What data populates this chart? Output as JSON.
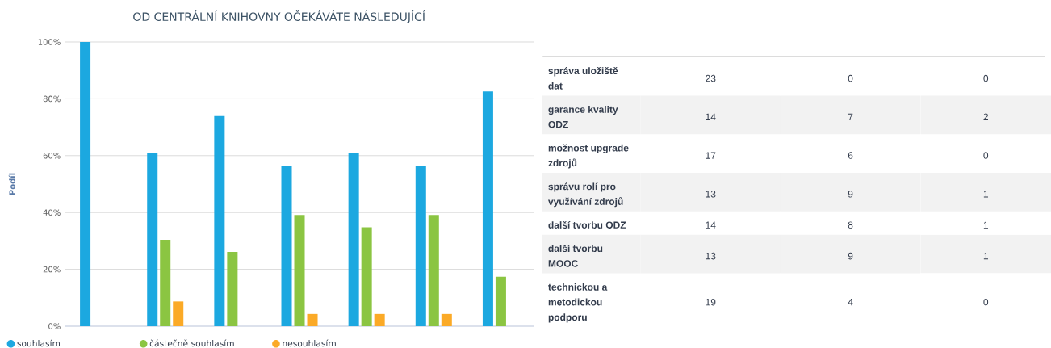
{
  "chart_data": [
    {
      "type": "bar",
      "title": "OD CENTRÁLNÍ KNIHOVNY OČEKÁVÁTE NÁSLEDUJÍCÍ",
      "ylabel": "Podíl",
      "categories": [
        null,
        null,
        null,
        null,
        null,
        null,
        null
      ],
      "series": [
        {
          "name": "souhlasím",
          "color": "#1ca8e0",
          "values": [
            100,
            60.9,
            73.9,
            56.5,
            60.9,
            56.5,
            82.6
          ]
        },
        {
          "name": "částečně souhlasím",
          "color": "#8bc542",
          "values": [
            0,
            30.4,
            26.1,
            39.1,
            34.8,
            39.1,
            17.4
          ]
        },
        {
          "name": "nesouhlasím",
          "color": "#fbaa27",
          "values": [
            0,
            8.7,
            0,
            4.3,
            4.3,
            4.3,
            0
          ]
        }
      ],
      "ylim": [
        0,
        100
      ],
      "yticks": [
        {
          "value": 0,
          "label": "0%"
        },
        {
          "value": 20,
          "label": "20%"
        },
        {
          "value": 40,
          "label": "40%"
        },
        {
          "value": 60,
          "label": "60%"
        },
        {
          "value": 80,
          "label": "80%"
        },
        {
          "value": 100,
          "label": "100%"
        }
      ],
      "grid": "y",
      "legend": "bottom"
    },
    {
      "type": "other",
      "categories": [
        "správa uložiště dat",
        "garance kvality ODZ",
        "možnost upgrade zdrojů",
        "správu rolí pro využívání zdrojů",
        "další tvorbu ODZ",
        "další tvorbu MOOC",
        "technickou a metodickou podporu"
      ],
      "series": [
        {
          "values": [
            23,
            14,
            17,
            13,
            14,
            13,
            19
          ]
        },
        {
          "values": [
            0,
            7,
            6,
            9,
            8,
            9,
            4
          ]
        },
        {
          "values": [
            0,
            2,
            0,
            1,
            1,
            1,
            0
          ]
        }
      ],
      "data_labels": true
    }
  ]
}
